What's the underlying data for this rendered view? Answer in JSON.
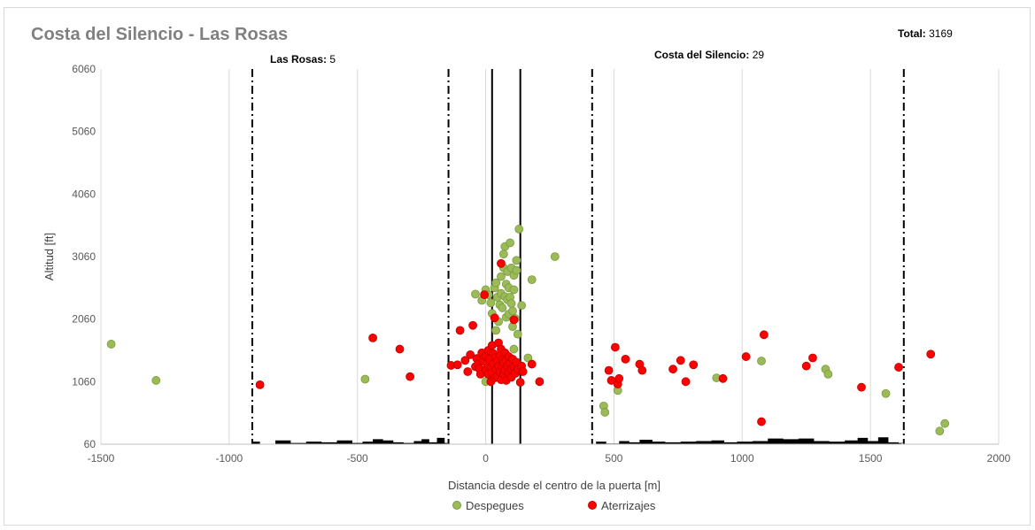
{
  "chart_data": {
    "type": "scatter",
    "title": "Costa del Silencio - Las Rosas",
    "xlabel": "Distancia desde el centro de la puerta [m]",
    "ylabel": "Altitud [ft]",
    "xlim": [
      -1500,
      2000
    ],
    "ylim": [
      60,
      6060
    ],
    "xticks": [
      -1500,
      -1000,
      -500,
      0,
      500,
      1000,
      1500,
      2000
    ],
    "yticks": [
      60,
      1060,
      2060,
      3060,
      4060,
      5060,
      6060
    ],
    "grid": "vertical",
    "legend_position": "bottom",
    "annotations": {
      "total_label": "Total:",
      "total_value": "3169",
      "las_rosas_label": "Las Rosas:",
      "las_rosas_value": "5",
      "costa_label": "Costa del Silencio:",
      "costa_value": "29"
    },
    "gate_lines": {
      "solid": [
        25,
        135
      ],
      "dashdot": [
        -910,
        -145,
        415,
        1630
      ]
    },
    "series": [
      {
        "name": "Despegues",
        "color": "#9bbb59",
        "points": [
          [
            -1460,
            1660
          ],
          [
            -1285,
            1080
          ],
          [
            -470,
            1100
          ],
          [
            -40,
            2460
          ],
          [
            -15,
            2360
          ],
          [
            0,
            2530
          ],
          [
            10,
            2450
          ],
          [
            20,
            2320
          ],
          [
            25,
            2150
          ],
          [
            35,
            2560
          ],
          [
            40,
            2640
          ],
          [
            45,
            2410
          ],
          [
            50,
            2020
          ],
          [
            55,
            2290
          ],
          [
            60,
            2740
          ],
          [
            60,
            2470
          ],
          [
            65,
            2240
          ],
          [
            70,
            3100
          ],
          [
            70,
            2880
          ],
          [
            75,
            3220
          ],
          [
            75,
            2420
          ],
          [
            80,
            2620
          ],
          [
            80,
            2090
          ],
          [
            85,
            2820
          ],
          [
            85,
            2370
          ],
          [
            90,
            2560
          ],
          [
            90,
            2140
          ],
          [
            95,
            3280
          ],
          [
            95,
            2410
          ],
          [
            100,
            2880
          ],
          [
            100,
            2310
          ],
          [
            105,
            2190
          ],
          [
            105,
            1940
          ],
          [
            110,
            2760
          ],
          [
            110,
            2530
          ],
          [
            115,
            2070
          ],
          [
            120,
            3000
          ],
          [
            120,
            2840
          ],
          [
            125,
            1820
          ],
          [
            130,
            3500
          ],
          [
            140,
            2280
          ],
          [
            165,
            1440
          ],
          [
            180,
            2690
          ],
          [
            270,
            3060
          ],
          [
            110,
            1580
          ],
          [
            40,
            1880
          ],
          [
            0,
            1060
          ],
          [
            460,
            670
          ],
          [
            465,
            570
          ],
          [
            515,
            920
          ],
          [
            900,
            1120
          ],
          [
            1075,
            1390
          ],
          [
            1325,
            1260
          ],
          [
            1335,
            1180
          ],
          [
            1560,
            870
          ],
          [
            1770,
            270
          ],
          [
            1790,
            390
          ]
        ]
      },
      {
        "name": "Aterrizajes",
        "color": "#ff0000",
        "points": [
          [
            -880,
            1010
          ],
          [
            -440,
            1760
          ],
          [
            -335,
            1580
          ],
          [
            -295,
            1140
          ],
          [
            -135,
            1320
          ],
          [
            -110,
            1330
          ],
          [
            -100,
            1880
          ],
          [
            -80,
            1400
          ],
          [
            -70,
            1220
          ],
          [
            -60,
            1490
          ],
          [
            -50,
            1960
          ],
          [
            -40,
            1300
          ],
          [
            -35,
            1430
          ],
          [
            -30,
            1340
          ],
          [
            -25,
            1270
          ],
          [
            -20,
            1180
          ],
          [
            -15,
            1520
          ],
          [
            -10,
            1390
          ],
          [
            -5,
            2450
          ],
          [
            0,
            1470
          ],
          [
            0,
            1250
          ],
          [
            5,
            1350
          ],
          [
            10,
            1560
          ],
          [
            10,
            1180
          ],
          [
            15,
            1420
          ],
          [
            20,
            1290
          ],
          [
            20,
            1060
          ],
          [
            25,
            1640
          ],
          [
            25,
            1200
          ],
          [
            30,
            1510
          ],
          [
            30,
            1350
          ],
          [
            35,
            2080
          ],
          [
            35,
            1120
          ],
          [
            40,
            1450
          ],
          [
            40,
            1260
          ],
          [
            45,
            1380
          ],
          [
            45,
            1140
          ],
          [
            50,
            1680
          ],
          [
            50,
            1310
          ],
          [
            55,
            1480
          ],
          [
            55,
            1220
          ],
          [
            60,
            2950
          ],
          [
            60,
            1580
          ],
          [
            60,
            1090
          ],
          [
            65,
            1410
          ],
          [
            65,
            1300
          ],
          [
            70,
            1360
          ],
          [
            70,
            1180
          ],
          [
            75,
            1520
          ],
          [
            75,
            1240
          ],
          [
            80,
            1400
          ],
          [
            80,
            1080
          ],
          [
            85,
            1310
          ],
          [
            90,
            1460
          ],
          [
            90,
            1200
          ],
          [
            95,
            1350
          ],
          [
            100,
            1260
          ],
          [
            100,
            1130
          ],
          [
            105,
            1420
          ],
          [
            110,
            2050
          ],
          [
            110,
            1290
          ],
          [
            115,
            1190
          ],
          [
            120,
            1370
          ],
          [
            125,
            1260
          ],
          [
            135,
            1050
          ],
          [
            140,
            1310
          ],
          [
            145,
            1220
          ],
          [
            180,
            1340
          ],
          [
            210,
            1060
          ],
          [
            480,
            1240
          ],
          [
            490,
            1080
          ],
          [
            505,
            1610
          ],
          [
            515,
            1020
          ],
          [
            520,
            1110
          ],
          [
            545,
            1420
          ],
          [
            600,
            1340
          ],
          [
            610,
            1240
          ],
          [
            730,
            1260
          ],
          [
            760,
            1400
          ],
          [
            780,
            1060
          ],
          [
            810,
            1330
          ],
          [
            925,
            1110
          ],
          [
            1015,
            1460
          ],
          [
            1075,
            420
          ],
          [
            1085,
            1810
          ],
          [
            1250,
            1310
          ],
          [
            1275,
            1440
          ],
          [
            1465,
            970
          ],
          [
            1610,
            1290
          ],
          [
            1735,
            1500
          ]
        ]
      }
    ],
    "terrain_heights": [
      [
        -910,
        100
      ],
      [
        -880,
        60
      ],
      [
        -820,
        120
      ],
      [
        -760,
        80
      ],
      [
        -700,
        100
      ],
      [
        -640,
        90
      ],
      [
        -580,
        120
      ],
      [
        -520,
        80
      ],
      [
        -480,
        100
      ],
      [
        -440,
        140
      ],
      [
        -400,
        120
      ],
      [
        -360,
        90
      ],
      [
        -320,
        80
      ],
      [
        -280,
        110
      ],
      [
        -250,
        140
      ],
      [
        -220,
        90
      ],
      [
        -190,
        160
      ],
      [
        -160,
        80
      ],
      [
        430,
        100
      ],
      [
        470,
        70
      ],
      [
        520,
        110
      ],
      [
        560,
        90
      ],
      [
        600,
        130
      ],
      [
        650,
        100
      ],
      [
        700,
        90
      ],
      [
        760,
        100
      ],
      [
        820,
        110
      ],
      [
        880,
        120
      ],
      [
        930,
        90
      ],
      [
        980,
        100
      ],
      [
        1040,
        110
      ],
      [
        1100,
        150
      ],
      [
        1160,
        140
      ],
      [
        1220,
        150
      ],
      [
        1280,
        110
      ],
      [
        1340,
        100
      ],
      [
        1400,
        120
      ],
      [
        1450,
        160
      ],
      [
        1490,
        110
      ],
      [
        1530,
        170
      ],
      [
        1570,
        90
      ],
      [
        1610,
        80
      ]
    ]
  },
  "legend": {
    "despegues_label": "Despegues",
    "aterrizajes_label": "Aterrizajes"
  }
}
